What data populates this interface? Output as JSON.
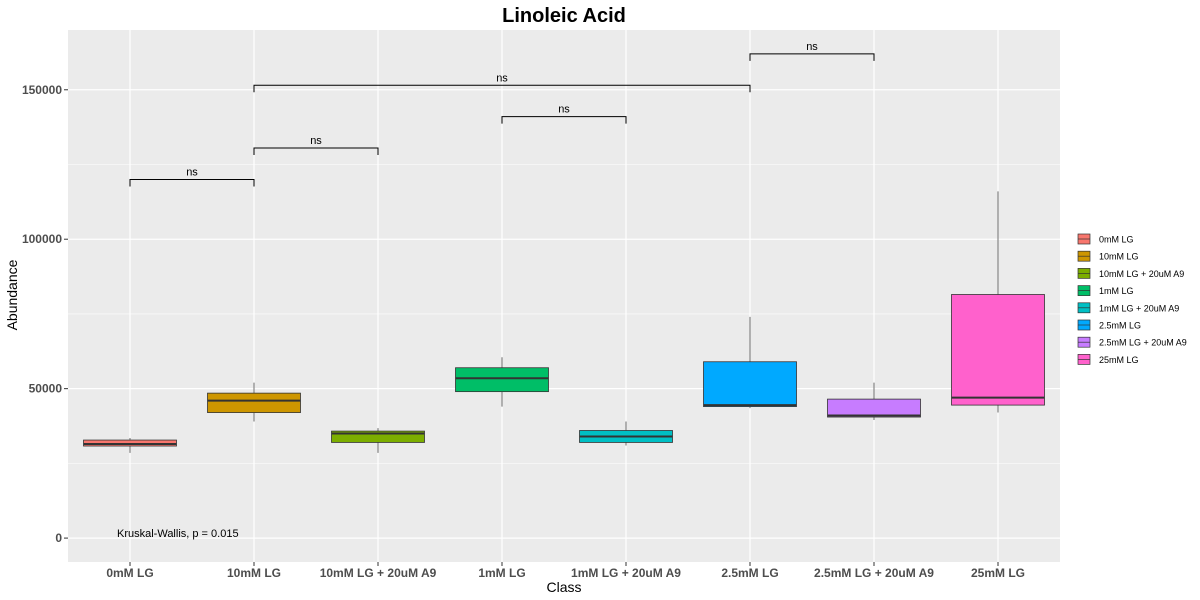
{
  "chart_data": {
    "type": "box",
    "title": "Linoleic Acid",
    "xlabel": "Class",
    "ylabel": "Abundance",
    "ylim": [
      -8000,
      170000
    ],
    "yticks": [
      0,
      50000,
      100000,
      150000
    ],
    "ytick_labels": [
      "0",
      "50000",
      "100000",
      "150000"
    ],
    "categories": [
      "0mM LG",
      "10mM LG",
      "10mM LG + 20uM A9",
      "1mM LG",
      "1mM LG + 20uM A9",
      "2.5mM LG",
      "2.5mM LG + 20uM A9",
      "25mM LG"
    ],
    "colors": [
      "#F8766D",
      "#CD9600",
      "#7CAE00",
      "#00BE67",
      "#00BFC4",
      "#00A9FF",
      "#C77CFF",
      "#FF61CC"
    ],
    "boxes": [
      {
        "min": 28500,
        "q1": 30800,
        "median": 31500,
        "q3": 32800,
        "max": 33500
      },
      {
        "min": 39000,
        "q1": 42000,
        "median": 46000,
        "q3": 48500,
        "max": 52000
      },
      {
        "min": 28500,
        "q1": 32000,
        "median": 35000,
        "q3": 35800,
        "max": 36800
      },
      {
        "min": 44000,
        "q1": 49000,
        "median": 53500,
        "q3": 57000,
        "max": 60500
      },
      {
        "min": 31000,
        "q1": 32000,
        "median": 34000,
        "q3": 36000,
        "max": 39000
      },
      {
        "min": 43500,
        "q1": 44000,
        "median": 44500,
        "q3": 59000,
        "max": 74000
      },
      {
        "min": 39500,
        "q1": 40500,
        "median": 41000,
        "q3": 46500,
        "max": 52000
      },
      {
        "min": 42000,
        "q1": 44500,
        "median": 47000,
        "q3": 81500,
        "max": 116000
      }
    ],
    "comparisons": [
      {
        "from": 0,
        "to": 1,
        "y": 120000,
        "label": "ns"
      },
      {
        "from": 1,
        "to": 2,
        "y": 130500,
        "label": "ns"
      },
      {
        "from": 3,
        "to": 4,
        "y": 141000,
        "label": "ns"
      },
      {
        "from": 1,
        "to": 5,
        "y": 151500,
        "label": "ns"
      },
      {
        "from": 5,
        "to": 6,
        "y": 162000,
        "label": "ns"
      }
    ],
    "annotation": "Kruskal-Wallis, p = 0.015",
    "legend": {
      "position": "right",
      "entries": [
        "0mM LG",
        "10mM LG",
        "10mM LG + 20uM A9",
        "1mM LG",
        "1mM LG + 20uM A9",
        "2.5mM LG",
        "2.5mM LG + 20uM A9",
        "25mM LG"
      ]
    },
    "grid": true,
    "panel_background": "#EBEBEB"
  }
}
